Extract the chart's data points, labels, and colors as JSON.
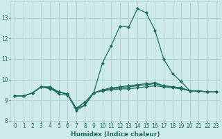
{
  "xlabel": "Humidex (Indice chaleur)",
  "bg_color": "#ceeaea",
  "grid_color": "#aacfcf",
  "line_color": "#1a6b60",
  "xlim": [
    -0.5,
    23.5
  ],
  "ylim": [
    8,
    13.8
  ],
  "yticks": [
    8,
    9,
    10,
    11,
    12,
    13
  ],
  "xticks": [
    0,
    1,
    2,
    3,
    4,
    5,
    6,
    7,
    8,
    9,
    10,
    11,
    12,
    13,
    14,
    15,
    16,
    17,
    18,
    19,
    20,
    21,
    22,
    23
  ],
  "series": [
    [
      9.2,
      9.2,
      9.35,
      9.65,
      9.65,
      9.4,
      9.3,
      8.5,
      8.75,
      9.35,
      10.8,
      11.65,
      12.6,
      12.55,
      13.45,
      13.25,
      12.4,
      11.0,
      10.3,
      9.9,
      9.45,
      9.45,
      9.4,
      9.4
    ],
    [
      9.2,
      9.2,
      9.35,
      9.65,
      9.6,
      9.3,
      9.25,
      8.6,
      8.9,
      9.35,
      9.5,
      9.6,
      9.65,
      9.7,
      9.75,
      9.8,
      9.85,
      9.7,
      9.65,
      9.6,
      9.45,
      9.45,
      9.4,
      9.4
    ],
    [
      9.2,
      9.2,
      9.35,
      9.65,
      9.55,
      9.4,
      9.3,
      8.6,
      8.75,
      9.35,
      9.45,
      9.5,
      9.55,
      9.55,
      9.6,
      9.65,
      9.7,
      9.65,
      9.6,
      9.55,
      9.45,
      9.45,
      9.4,
      9.4
    ],
    [
      9.2,
      9.2,
      9.35,
      9.65,
      9.6,
      9.4,
      9.3,
      8.6,
      8.9,
      9.35,
      9.5,
      9.55,
      9.6,
      9.65,
      9.7,
      9.75,
      9.8,
      9.7,
      9.65,
      9.6,
      9.45,
      9.45,
      9.4,
      9.4
    ]
  ],
  "marker": "D",
  "markersize": 2.0,
  "linewidth": 0.9,
  "tick_fontsize": 5.5,
  "xlabel_fontsize": 6.5
}
